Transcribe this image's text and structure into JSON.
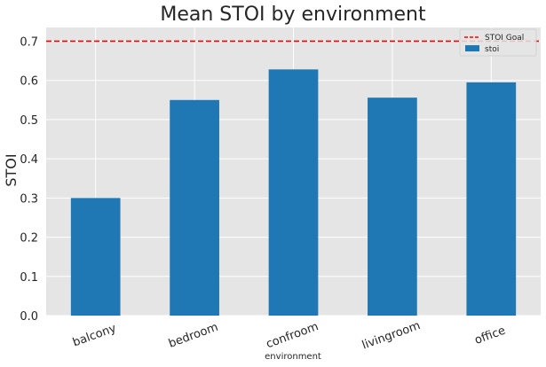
{
  "chart_data": {
    "type": "bar",
    "title": "Mean STOI by environment",
    "xlabel": "environment",
    "ylabel": "STOI",
    "categories": [
      "balcony",
      "bedroom",
      "confroom",
      "livingroom",
      "office"
    ],
    "series": [
      {
        "name": "stoi",
        "values": [
          0.3,
          0.55,
          0.628,
          0.556,
          0.595
        ],
        "color": "#1f77b4"
      }
    ],
    "reference_lines": [
      {
        "name": "STOI Goal",
        "y": 0.7,
        "color": "#ff0000",
        "style": "dashed"
      }
    ],
    "ylim": [
      0,
      0.735
    ],
    "yticks": [
      0.0,
      0.1,
      0.2,
      0.3,
      0.4,
      0.5,
      0.6,
      0.7
    ],
    "ytick_labels": [
      "0.0",
      "0.1",
      "0.2",
      "0.3",
      "0.4",
      "0.5",
      "0.6",
      "0.7"
    ],
    "grid": true,
    "legend_position": "top-right",
    "background_color": "#e5e5e5",
    "grid_color": "#ffffff"
  }
}
